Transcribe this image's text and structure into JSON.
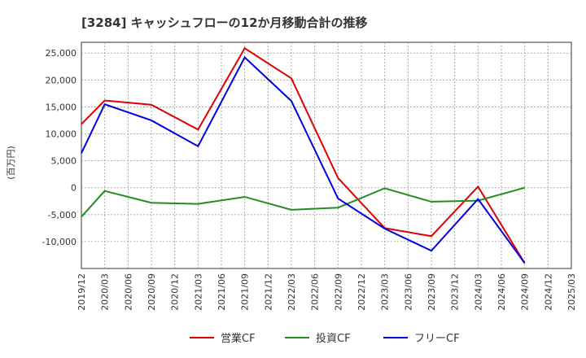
{
  "chart_data": {
    "type": "line",
    "title": "[3284]  キャッシュフローの12か月移動合計の推移",
    "ylabel": "(百万円)",
    "xlabel": "",
    "ylim": [
      -15000,
      27000
    ],
    "yticks": [
      25000,
      20000,
      15000,
      10000,
      5000,
      0,
      -5000,
      -10000
    ],
    "ytick_labels": [
      "25,000",
      "20,000",
      "15,000",
      "10,000",
      "5,000",
      "0",
      "-5,000",
      "-10,000"
    ],
    "categories": [
      "2019/12",
      "2020/03",
      "2020/06",
      "2020/09",
      "2020/12",
      "2021/03",
      "2021/06",
      "2021/09",
      "2021/12",
      "2022/03",
      "2022/06",
      "2022/09",
      "2022/12",
      "2023/03",
      "2023/06",
      "2023/09",
      "2023/12",
      "2024/03",
      "2024/06",
      "2024/09",
      "2024/12",
      "2025/03"
    ],
    "grid": true,
    "legend_position": "bottom",
    "series": [
      {
        "name": "営業CF",
        "color": "#dd0000",
        "values": [
          11800,
          16200,
          null,
          15400,
          null,
          10800,
          null,
          25900,
          null,
          20300,
          null,
          1800,
          null,
          -7500,
          null,
          -9000,
          null,
          200,
          null,
          -14000,
          null,
          null
        ]
      },
      {
        "name": "投資CF",
        "color": "#228b22",
        "values": [
          -5400,
          -600,
          null,
          -2800,
          null,
          -3000,
          null,
          -1700,
          null,
          -4100,
          null,
          -3700,
          null,
          -100,
          null,
          -2600,
          null,
          -2400,
          null,
          0,
          null,
          null
        ]
      },
      {
        "name": "フリーCF",
        "color": "#0000dd",
        "values": [
          6400,
          15500,
          null,
          12500,
          null,
          7700,
          null,
          24200,
          null,
          16100,
          null,
          -2000,
          null,
          -7600,
          null,
          -11700,
          null,
          -2100,
          null,
          -14000,
          null,
          null
        ]
      }
    ]
  }
}
